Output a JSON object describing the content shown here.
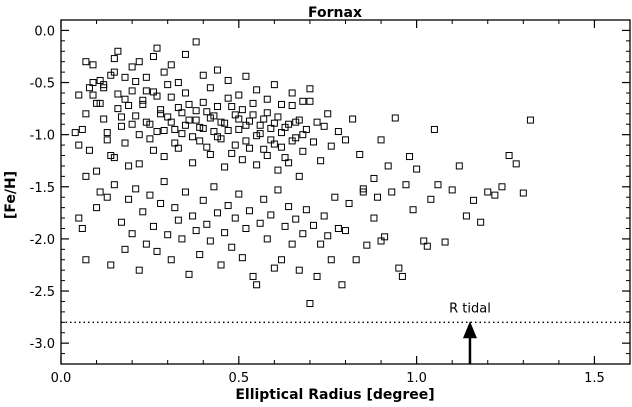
{
  "chart_data": {
    "type": "scatter",
    "title": "Fornax",
    "xlabel": "Elliptical Radius [degree]",
    "ylabel": "[Fe/H]",
    "xlim": [
      0.0,
      1.6
    ],
    "ylim": [
      -3.2,
      0.1
    ],
    "x_ticks": [
      "0.0",
      "0.5",
      "1.0",
      "1.5"
    ],
    "y_ticks": [
      "0.0",
      "-0.5",
      "-1.0",
      "-1.5",
      "-2.0",
      "-2.5",
      "-3.0"
    ],
    "x_tick_values": [
      0.0,
      0.5,
      1.0,
      1.5
    ],
    "y_tick_values": [
      0.0,
      -0.5,
      -1.0,
      -1.5,
      -2.0,
      -2.5,
      -3.0
    ],
    "grid": false,
    "marker": "open-square",
    "reference_line": {
      "label": "R tidal",
      "y": -2.8,
      "style": "dotted"
    },
    "arrow": {
      "x": 1.15,
      "y_from": -3.2,
      "y_to": -2.8
    },
    "points": [
      [
        0.04,
        -0.98
      ],
      [
        0.05,
        -1.1
      ],
      [
        0.07,
        -1.4
      ],
      [
        0.08,
        -0.55
      ],
      [
        0.09,
        -0.62
      ],
      [
        0.1,
        -0.7
      ],
      [
        0.11,
        -0.48
      ],
      [
        0.12,
        -0.85
      ],
      [
        0.13,
        -1.05
      ],
      [
        0.14,
        -1.2
      ],
      [
        0.15,
        -0.4
      ],
      [
        0.16,
        -0.75
      ],
      [
        0.17,
        -0.92
      ],
      [
        0.18,
        -0.66
      ],
      [
        0.19,
        -1.3
      ],
      [
        0.2,
        -0.58
      ],
      [
        0.21,
        -0.82
      ],
      [
        0.22,
        -1.0
      ],
      [
        0.23,
        -0.71
      ],
      [
        0.24,
        -0.45
      ],
      [
        0.25,
        -0.9
      ],
      [
        0.26,
        -1.15
      ],
      [
        0.27,
        -0.63
      ],
      [
        0.28,
        -0.8
      ],
      [
        0.29,
        -0.96
      ],
      [
        0.3,
        -0.52
      ],
      [
        0.31,
        -0.88
      ],
      [
        0.32,
        -1.08
      ],
      [
        0.33,
        -0.74
      ],
      [
        0.34,
        -0.99
      ],
      [
        0.35,
        -0.6
      ],
      [
        0.36,
        -0.86
      ],
      [
        0.37,
        -1.02
      ],
      [
        0.38,
        -0.77
      ],
      [
        0.39,
        -0.93
      ],
      [
        0.4,
        -0.69
      ],
      [
        0.41,
        -1.12
      ],
      [
        0.42,
        -0.84
      ],
      [
        0.43,
        -0.97
      ],
      [
        0.44,
        -0.73
      ],
      [
        0.45,
        -1.04
      ],
      [
        0.46,
        -0.89
      ],
      [
        0.47,
        -0.65
      ],
      [
        0.48,
        -1.18
      ],
      [
        0.49,
        -0.81
      ],
      [
        0.5,
        -0.95
      ],
      [
        0.51,
        -0.76
      ],
      [
        0.52,
        -1.06
      ],
      [
        0.53,
        -0.87
      ],
      [
        0.54,
        -0.7
      ],
      [
        0.55,
        -1.01
      ],
      [
        0.56,
        -0.91
      ],
      [
        0.57,
        -1.14
      ],
      [
        0.58,
        -0.79
      ],
      [
        0.59,
        -0.94
      ],
      [
        0.6,
        -1.09
      ],
      [
        0.61,
        -0.83
      ],
      [
        0.62,
        -0.98
      ],
      [
        0.63,
        -1.22
      ],
      [
        0.64,
        -0.9
      ],
      [
        0.65,
        -0.72
      ],
      [
        0.66,
        -1.03
      ],
      [
        0.67,
        -0.86
      ],
      [
        0.68,
        -1.16
      ],
      [
        0.69,
        -0.95
      ],
      [
        0.7,
        -0.68
      ],
      [
        0.71,
        -1.07
      ],
      [
        0.72,
        -0.88
      ],
      [
        0.73,
        -1.25
      ],
      [
        0.74,
        -0.92
      ],
      [
        0.75,
        -0.8
      ],
      [
        0.76,
        -1.11
      ],
      [
        0.78,
        -0.97
      ],
      [
        0.8,
        -1.05
      ],
      [
        0.82,
        -0.85
      ],
      [
        0.84,
        -1.19
      ],
      [
        0.05,
        -0.62
      ],
      [
        0.06,
        -0.95
      ],
      [
        0.07,
        -0.8
      ],
      [
        0.08,
        -1.15
      ],
      [
        0.09,
        -0.5
      ],
      [
        0.1,
        -1.35
      ],
      [
        0.11,
        -0.7
      ],
      [
        0.12,
        -0.55
      ],
      [
        0.13,
        -0.98
      ],
      [
        0.14,
        -0.43
      ],
      [
        0.15,
        -1.22
      ],
      [
        0.16,
        -0.61
      ],
      [
        0.17,
        -0.83
      ],
      [
        0.18,
        -1.08
      ],
      [
        0.19,
        -0.72
      ],
      [
        0.2,
        -0.9
      ],
      [
        0.21,
        -0.49
      ],
      [
        0.22,
        -1.28
      ],
      [
        0.23,
        -0.67
      ],
      [
        0.24,
        -0.88
      ],
      [
        0.25,
        -1.04
      ],
      [
        0.26,
        -0.59
      ],
      [
        0.27,
        -0.97
      ],
      [
        0.28,
        -0.76
      ],
      [
        0.29,
        -1.21
      ],
      [
        0.3,
        -0.83
      ],
      [
        0.31,
        -0.64
      ],
      [
        0.32,
        -0.95
      ],
      [
        0.33,
        -1.13
      ],
      [
        0.34,
        -0.79
      ],
      [
        0.35,
        -0.91
      ],
      [
        0.36,
        -0.71
      ],
      [
        0.37,
        -1.27
      ],
      [
        0.38,
        -0.86
      ],
      [
        0.39,
        -1.06
      ],
      [
        0.4,
        -0.94
      ],
      [
        0.41,
        -0.78
      ],
      [
        0.42,
        -1.19
      ],
      [
        0.43,
        -0.82
      ],
      [
        0.44,
        -1.02
      ],
      [
        0.45,
        -0.88
      ],
      [
        0.46,
        -1.31
      ],
      [
        0.47,
        -0.96
      ],
      [
        0.48,
        -0.73
      ],
      [
        0.49,
        -1.1
      ],
      [
        0.5,
        -0.85
      ],
      [
        0.51,
        -1.24
      ],
      [
        0.52,
        -0.91
      ],
      [
        0.53,
        -1.13
      ],
      [
        0.54,
        -0.81
      ],
      [
        0.55,
        -1.29
      ],
      [
        0.56,
        -0.99
      ],
      [
        0.57,
        -0.85
      ],
      [
        0.58,
        -1.2
      ],
      [
        0.59,
        -1.05
      ],
      [
        0.6,
        -0.89
      ],
      [
        0.61,
        -1.34
      ],
      [
        0.62,
        -1.12
      ],
      [
        0.63,
        -0.93
      ],
      [
        0.64,
        -1.27
      ],
      [
        0.65,
        -1.06
      ],
      [
        0.66,
        -0.88
      ],
      [
        0.67,
        -1.4
      ],
      [
        0.68,
        -1.0
      ],
      [
        0.05,
        -1.8
      ],
      [
        0.06,
        -1.9
      ],
      [
        0.07,
        -2.2
      ],
      [
        0.1,
        -1.7
      ],
      [
        0.11,
        -1.55
      ],
      [
        0.13,
        -1.6
      ],
      [
        0.14,
        -2.25
      ],
      [
        0.15,
        -1.48
      ],
      [
        0.17,
        -1.84
      ],
      [
        0.18,
        -2.1
      ],
      [
        0.19,
        -1.62
      ],
      [
        0.2,
        -1.95
      ],
      [
        0.21,
        -1.52
      ],
      [
        0.22,
        -2.3
      ],
      [
        0.23,
        -1.74
      ],
      [
        0.24,
        -2.05
      ],
      [
        0.25,
        -1.58
      ],
      [
        0.26,
        -1.88
      ],
      [
        0.27,
        -2.12
      ],
      [
        0.28,
        -1.66
      ],
      [
        0.29,
        -1.45
      ],
      [
        0.3,
        -1.96
      ],
      [
        0.31,
        -2.2
      ],
      [
        0.32,
        -1.7
      ],
      [
        0.33,
        -1.82
      ],
      [
        0.34,
        -2.0
      ],
      [
        0.35,
        -1.55
      ],
      [
        0.36,
        -2.34
      ],
      [
        0.37,
        -1.78
      ],
      [
        0.38,
        -1.92
      ],
      [
        0.39,
        -2.15
      ],
      [
        0.4,
        -1.63
      ],
      [
        0.41,
        -1.86
      ],
      [
        0.42,
        -2.02
      ],
      [
        0.43,
        -1.5
      ],
      [
        0.44,
        -1.75
      ],
      [
        0.45,
        -2.25
      ],
      [
        0.46,
        -1.94
      ],
      [
        0.47,
        -1.68
      ],
      [
        0.48,
        -2.08
      ],
      [
        0.49,
        -1.8
      ],
      [
        0.5,
        -1.57
      ],
      [
        0.51,
        -2.18
      ],
      [
        0.52,
        -1.9
      ],
      [
        0.53,
        -1.73
      ],
      [
        0.54,
        -2.36
      ],
      [
        0.55,
        -2.44
      ],
      [
        0.56,
        -1.85
      ],
      [
        0.57,
        -1.62
      ],
      [
        0.58,
        -2.0
      ],
      [
        0.59,
        -1.77
      ],
      [
        0.6,
        -2.28
      ],
      [
        0.61,
        -1.53
      ],
      [
        0.62,
        -2.2
      ],
      [
        0.63,
        -1.88
      ],
      [
        0.64,
        -1.69
      ],
      [
        0.65,
        -2.05
      ],
      [
        0.66,
        -1.81
      ],
      [
        0.67,
        -2.3
      ],
      [
        0.68,
        -1.95
      ],
      [
        0.69,
        -1.72
      ],
      [
        0.7,
        -2.62
      ],
      [
        0.71,
        -1.87
      ],
      [
        0.72,
        -2.36
      ],
      [
        0.73,
        -2.05
      ],
      [
        0.74,
        -1.78
      ],
      [
        0.75,
        -1.97
      ],
      [
        0.76,
        -2.2
      ],
      [
        0.77,
        -1.6
      ],
      [
        0.78,
        -1.9
      ],
      [
        0.79,
        -2.44
      ],
      [
        0.8,
        -1.92
      ],
      [
        0.81,
        -1.66
      ],
      [
        0.83,
        -2.2
      ],
      [
        0.85,
        -1.52
      ],
      [
        0.88,
        -1.8
      ],
      [
        0.9,
        -2.02
      ],
      [
        0.93,
        -1.55
      ],
      [
        0.07,
        -0.3
      ],
      [
        0.09,
        -0.33
      ],
      [
        0.12,
        -0.52
      ],
      [
        0.15,
        -0.27
      ],
      [
        0.16,
        -0.2
      ],
      [
        0.18,
        -0.45
      ],
      [
        0.2,
        -0.35
      ],
      [
        0.22,
        -0.3
      ],
      [
        0.24,
        -0.58
      ],
      [
        0.26,
        -0.25
      ],
      [
        0.27,
        -0.17
      ],
      [
        0.29,
        -0.4
      ],
      [
        0.31,
        -0.33
      ],
      [
        0.33,
        -0.5
      ],
      [
        0.35,
        -0.23
      ],
      [
        0.38,
        -0.11
      ],
      [
        0.4,
        -0.43
      ],
      [
        0.42,
        -0.55
      ],
      [
        0.44,
        -0.38
      ],
      [
        0.47,
        -0.48
      ],
      [
        0.5,
        -0.62
      ],
      [
        0.52,
        -0.44
      ],
      [
        0.55,
        -0.57
      ],
      [
        0.58,
        -0.66
      ],
      [
        0.6,
        -0.52
      ],
      [
        0.62,
        -0.71
      ],
      [
        0.65,
        -0.6
      ],
      [
        0.68,
        -0.68
      ],
      [
        0.7,
        -0.56
      ],
      [
        0.85,
        -1.55
      ],
      [
        0.88,
        -1.42
      ],
      [
        0.9,
        -1.05
      ],
      [
        0.92,
        -1.3
      ],
      [
        0.94,
        -0.84
      ],
      [
        0.95,
        -2.28
      ],
      [
        0.96,
        -2.36
      ],
      [
        0.97,
        -1.48
      ],
      [
        0.98,
        -1.21
      ],
      [
        1.0,
        -1.33
      ],
      [
        1.02,
        -2.02
      ],
      [
        1.04,
        -1.62
      ],
      [
        1.05,
        -0.95
      ],
      [
        1.06,
        -1.48
      ],
      [
        1.08,
        -2.03
      ],
      [
        1.1,
        -1.53
      ],
      [
        1.12,
        -1.3
      ],
      [
        1.14,
        -1.78
      ],
      [
        1.16,
        -1.63
      ],
      [
        1.18,
        -1.84
      ],
      [
        1.2,
        -1.55
      ],
      [
        1.22,
        -1.58
      ],
      [
        1.24,
        -1.5
      ],
      [
        1.26,
        -1.2
      ],
      [
        1.28,
        -1.28
      ],
      [
        1.3,
        -1.56
      ],
      [
        1.32,
        -0.86
      ],
      [
        0.86,
        -2.06
      ],
      [
        0.89,
        -1.6
      ],
      [
        0.91,
        -1.98
      ],
      [
        0.99,
        -1.72
      ],
      [
        1.03,
        -2.07
      ]
    ]
  }
}
